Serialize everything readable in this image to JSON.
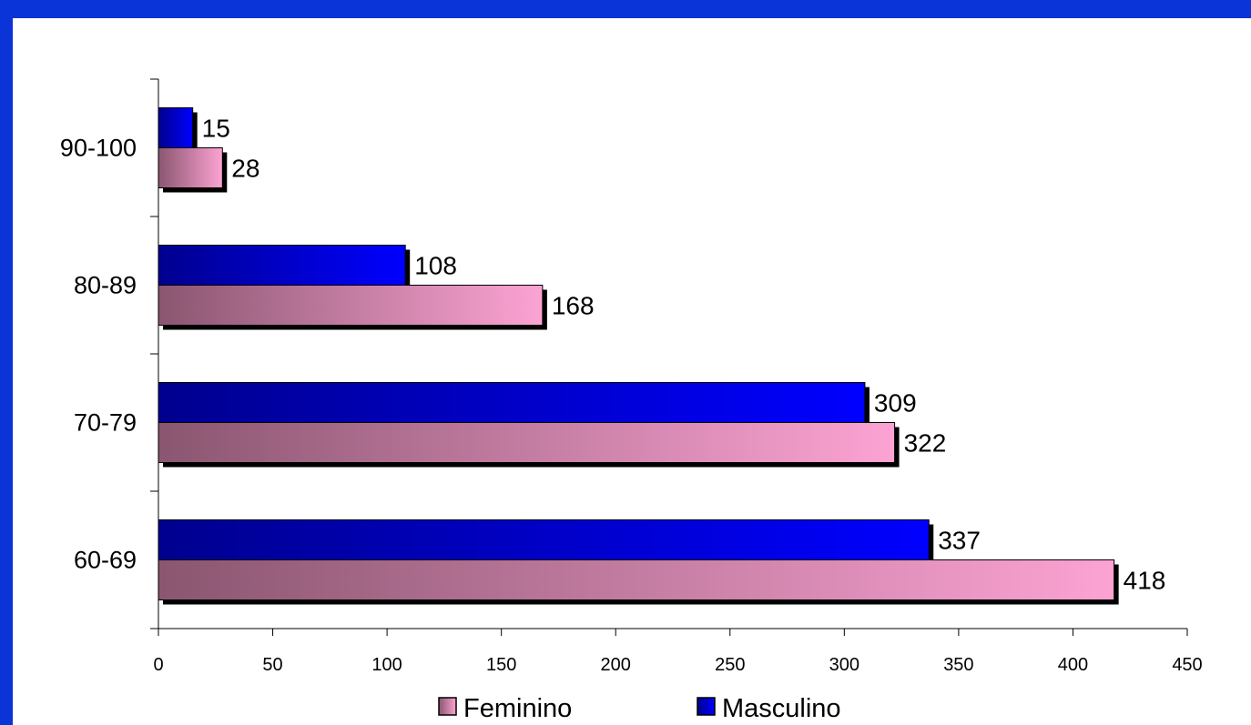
{
  "colors": {
    "frame": "#0a33d8",
    "background": "#ffffff",
    "femininoLight": "#fca3d3",
    "femininoDark": "#8a5670",
    "masculinoLight": "#0000ff",
    "masculinoDark": "#00008e",
    "shadow": "#000000"
  },
  "chart_data": {
    "type": "bar",
    "orientation": "horizontal",
    "categories": [
      "60-69",
      "70-79",
      "80-89",
      "90-100"
    ],
    "series": [
      {
        "name": "Masculino",
        "values": [
          337,
          309,
          108,
          15
        ],
        "color": "#0000ff"
      },
      {
        "name": "Feminino",
        "values": [
          418,
          322,
          168,
          28
        ],
        "color": "#fca3d3"
      }
    ],
    "xlim": [
      0,
      450
    ],
    "xticks": [
      0,
      50,
      100,
      150,
      200,
      250,
      300,
      350,
      400,
      450
    ],
    "grid": false,
    "legend": {
      "position": "bottom",
      "items": [
        "Feminino",
        "Masculino"
      ]
    },
    "data_labels": true
  }
}
